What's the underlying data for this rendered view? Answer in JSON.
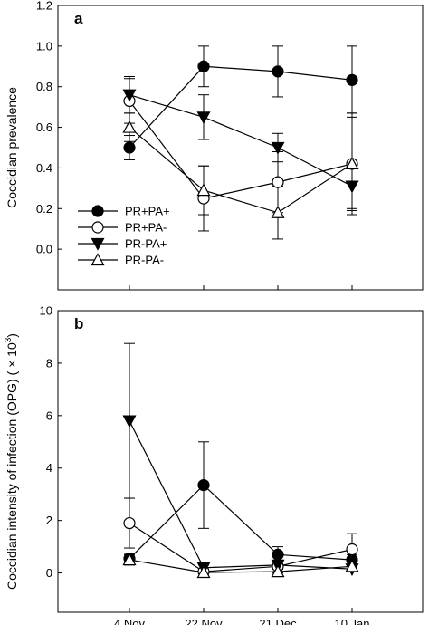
{
  "chart_data": [
    {
      "type": "line",
      "panel": "a",
      "title": "",
      "xlabel": "",
      "ylabel": "Coccidian prevalence",
      "categories": [
        "4 Nov",
        "22 Nov",
        "21 Dec",
        "10 Jan"
      ],
      "ylim": [
        -0.2,
        1.2
      ],
      "yticks": [
        "0.0",
        "0.2",
        "0.4",
        "0.6",
        "0.8",
        "1.0",
        "1.2"
      ],
      "ytick_values": [
        0,
        0.2,
        0.4,
        0.6,
        0.8,
        1.0,
        1.2
      ],
      "show_x_tick_labels": false,
      "legend": "lower-left",
      "series": [
        {
          "name": "PR+PA+",
          "marker": "circle-filled",
          "values": [
            0.5,
            0.9,
            0.875,
            0.833
          ],
          "err_low": [
            0.44,
            0.8,
            0.75,
            0.67
          ],
          "err_high": [
            0.56,
            1.0,
            1.0,
            1.0
          ]
        },
        {
          "name": "PR+PA-",
          "marker": "circle-open",
          "values": [
            0.73,
            0.25,
            0.33,
            0.42
          ],
          "err_low": [
            0.62,
            0.09,
            0.18,
            0.17
          ],
          "err_high": [
            0.84,
            0.41,
            0.48,
            0.67
          ]
        },
        {
          "name": "PR-PA+",
          "marker": "triangle-down-filled",
          "values": [
            0.76,
            0.65,
            0.5,
            0.31
          ],
          "err_low": [
            0.67,
            0.54,
            0.43,
            0.2
          ],
          "err_high": [
            0.85,
            0.76,
            0.57,
            0.42
          ]
        },
        {
          "name": "PR-PA-",
          "marker": "triangle-up-open",
          "values": [
            0.6,
            0.29,
            0.18,
            0.42
          ],
          "err_low": [
            0.53,
            0.17,
            0.05,
            0.19
          ],
          "err_high": [
            0.67,
            0.41,
            0.31,
            0.65
          ]
        }
      ]
    },
    {
      "type": "line",
      "panel": "b",
      "title": "",
      "xlabel": "",
      "ylabel": "Coccidian intensity of infection (OPG) ( × 10",
      "ylabel_sup": "3",
      "ylabel_end": ")",
      "categories": [
        "4 Nov",
        "22 Nov",
        "21 Dec",
        "10 Jan"
      ],
      "ylim": [
        -1.5,
        10
      ],
      "yticks": [
        "0",
        "2",
        "4",
        "6",
        "8",
        "10"
      ],
      "ytick_values": [
        0,
        2,
        4,
        6,
        8,
        10
      ],
      "show_x_tick_labels": true,
      "legend": "none",
      "series": [
        {
          "name": "PR+PA+",
          "marker": "circle-filled",
          "values": [
            0.55,
            3.35,
            0.7,
            0.5
          ],
          "err_low": [
            0.35,
            1.7,
            0.4,
            0.3
          ],
          "err_high": [
            0.75,
            5.0,
            1.0,
            0.7
          ]
        },
        {
          "name": "PR+PA-",
          "marker": "circle-open",
          "values": [
            1.9,
            0.05,
            0.25,
            0.9
          ],
          "err_low": [
            0.95,
            0.0,
            0.05,
            0.3
          ],
          "err_high": [
            2.85,
            0.15,
            0.45,
            1.5
          ]
        },
        {
          "name": "PR-PA+",
          "marker": "triangle-down-filled",
          "values": [
            5.8,
            0.2,
            0.3,
            0.15
          ],
          "err_low": [
            2.85,
            0.1,
            0.15,
            0.05
          ],
          "err_high": [
            8.75,
            0.3,
            0.45,
            0.3
          ]
        },
        {
          "name": "PR-PA-",
          "marker": "triangle-up-open",
          "values": [
            0.5,
            0.02,
            0.05,
            0.25
          ],
          "err_low": [
            0.3,
            0.0,
            0.0,
            0.1
          ],
          "err_high": [
            0.7,
            0.1,
            0.15,
            0.4
          ]
        }
      ]
    }
  ]
}
